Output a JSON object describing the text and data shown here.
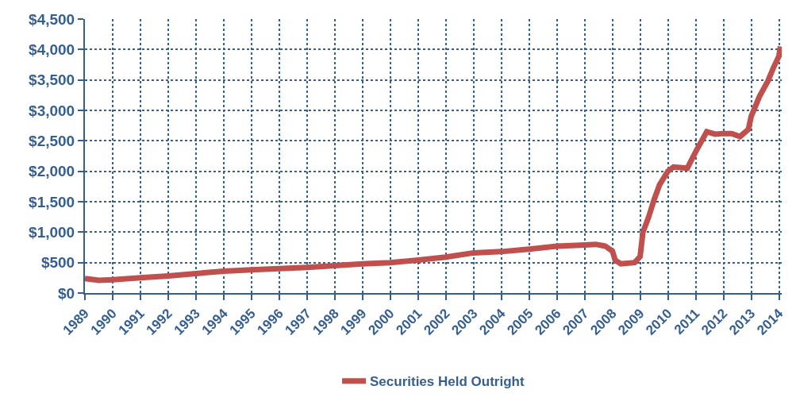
{
  "chart_data": {
    "type": "line",
    "x": [
      1989,
      1989.5,
      1990,
      1991,
      1992,
      1993,
      1994,
      1995,
      1996,
      1997,
      1998,
      1999,
      2000,
      2001,
      2002,
      2003,
      2004,
      2005,
      2006,
      2007,
      2007.4,
      2007.75,
      2008,
      2008.1,
      2008.3,
      2008.8,
      2009,
      2009.1,
      2009.3,
      2009.5,
      2009.7,
      2010,
      2010.2,
      2010.7,
      2011,
      2011.4,
      2011.7,
      2012,
      2012.3,
      2012.6,
      2012.9,
      2013,
      2013.3,
      2013.6,
      2013.8,
      2014,
      2014.05
    ],
    "series": [
      {
        "name": "Securities Held Outright",
        "color": "#c0504d",
        "values": [
          240,
          210,
          220,
          250,
          280,
          320,
          360,
          380,
          400,
          420,
          450,
          480,
          500,
          540,
          590,
          660,
          680,
          720,
          770,
          790,
          800,
          770,
          690,
          540,
          480,
          500,
          600,
          1000,
          1240,
          1530,
          1780,
          2000,
          2070,
          2050,
          2320,
          2650,
          2610,
          2620,
          2620,
          2570,
          2690,
          2900,
          3230,
          3480,
          3700,
          3890,
          4050
        ]
      }
    ],
    "xlim": [
      1989,
      2014.1
    ],
    "xticks": [
      1989,
      1990,
      1991,
      1992,
      1993,
      1994,
      1995,
      1996,
      1997,
      1998,
      1999,
      2000,
      2001,
      2002,
      2003,
      2004,
      2005,
      2006,
      2007,
      2008,
      2009,
      2010,
      2011,
      2012,
      2013,
      2014
    ],
    "ylim": [
      0,
      4500
    ],
    "yticks": [
      {
        "value": 0,
        "label": "$0"
      },
      {
        "value": 500,
        "label": "$500"
      },
      {
        "value": 1000,
        "label": "$1,000"
      },
      {
        "value": 1500,
        "label": "$1,500"
      },
      {
        "value": 2000,
        "label": "$2,000"
      },
      {
        "value": 2500,
        "label": "$2,500"
      },
      {
        "value": 3000,
        "label": "$3,000"
      },
      {
        "value": 3500,
        "label": "$3,500"
      },
      {
        "value": 4000,
        "label": "$4,000"
      },
      {
        "value": 4500,
        "label": "$4,500"
      }
    ],
    "grid": true,
    "legend": "bottom",
    "marker": "none",
    "line_style": "solid"
  }
}
